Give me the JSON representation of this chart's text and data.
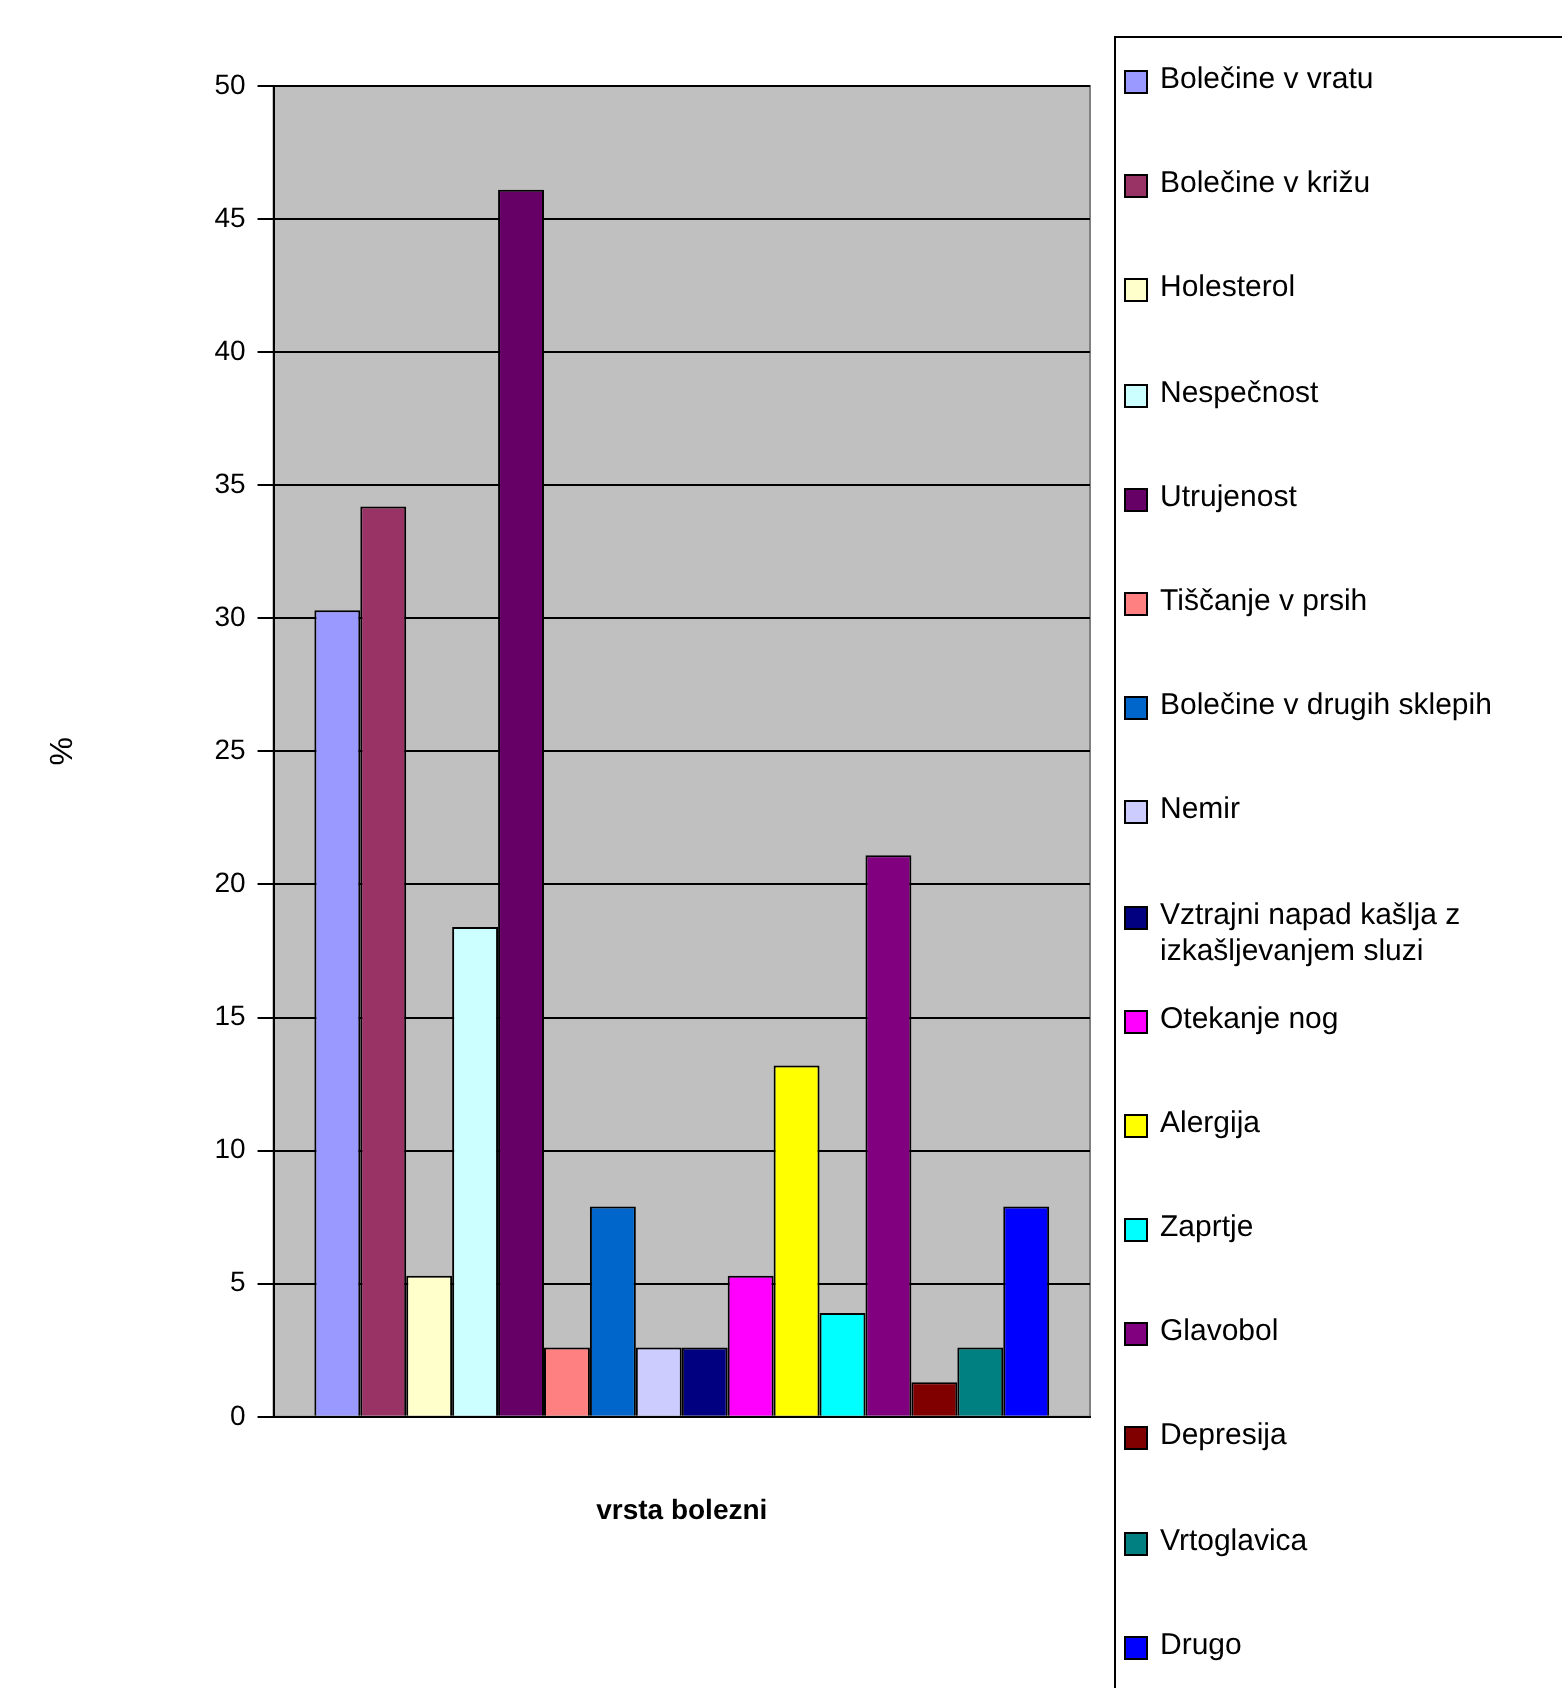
{
  "chart_data": {
    "type": "bar",
    "xlabel": "vrsta bolezni",
    "ylabel": "%",
    "categories": [
      null
    ],
    "series": [
      {
        "name": "Bolečine v vratu",
        "color": "#9999ff",
        "values": [
          30.3
        ]
      },
      {
        "name": "Bolečine v križu",
        "color": "#993366",
        "values": [
          34.2
        ]
      },
      {
        "name": "Holesterol",
        "color": "#ffffcc",
        "values": [
          5.3
        ]
      },
      {
        "name": "Nespečnost",
        "color": "#ccffff",
        "values": [
          18.4
        ]
      },
      {
        "name": "Utrujenost",
        "color": "#660066",
        "values": [
          46.1
        ]
      },
      {
        "name": "Tiščanje v prsih",
        "color": "#ff8080",
        "values": [
          2.6
        ]
      },
      {
        "name": "Bolečine v drugih sklepih",
        "color": "#0066cc",
        "values": [
          7.9
        ]
      },
      {
        "name": "Nemir",
        "color": "#ccccff",
        "values": [
          2.6
        ]
      },
      {
        "name": "Vztrajni napad kašlja z izkašljevanjem sluzi",
        "color": "#000080",
        "values": [
          2.6
        ]
      },
      {
        "name": "Otekanje nog",
        "color": "#ff00ff",
        "values": [
          5.3
        ]
      },
      {
        "name": "Alergija",
        "color": "#ffff00",
        "values": [
          13.2
        ]
      },
      {
        "name": "Zaprtje",
        "color": "#00ffff",
        "values": [
          3.9
        ]
      },
      {
        "name": "Glavobol",
        "color": "#800080",
        "values": [
          21.1
        ]
      },
      {
        "name": "Depresija",
        "color": "#800000",
        "values": [
          1.3
        ]
      },
      {
        "name": "Vrtoglavica",
        "color": "#008080",
        "values": [
          2.6
        ]
      },
      {
        "name": "Drugo",
        "color": "#0000ff",
        "values": [
          7.9
        ]
      }
    ],
    "ylim": [
      0,
      50
    ],
    "yticks": [
      0,
      5,
      10,
      15,
      20,
      25,
      30,
      35,
      40,
      45,
      50
    ],
    "grid": "y",
    "legend": "right"
  }
}
